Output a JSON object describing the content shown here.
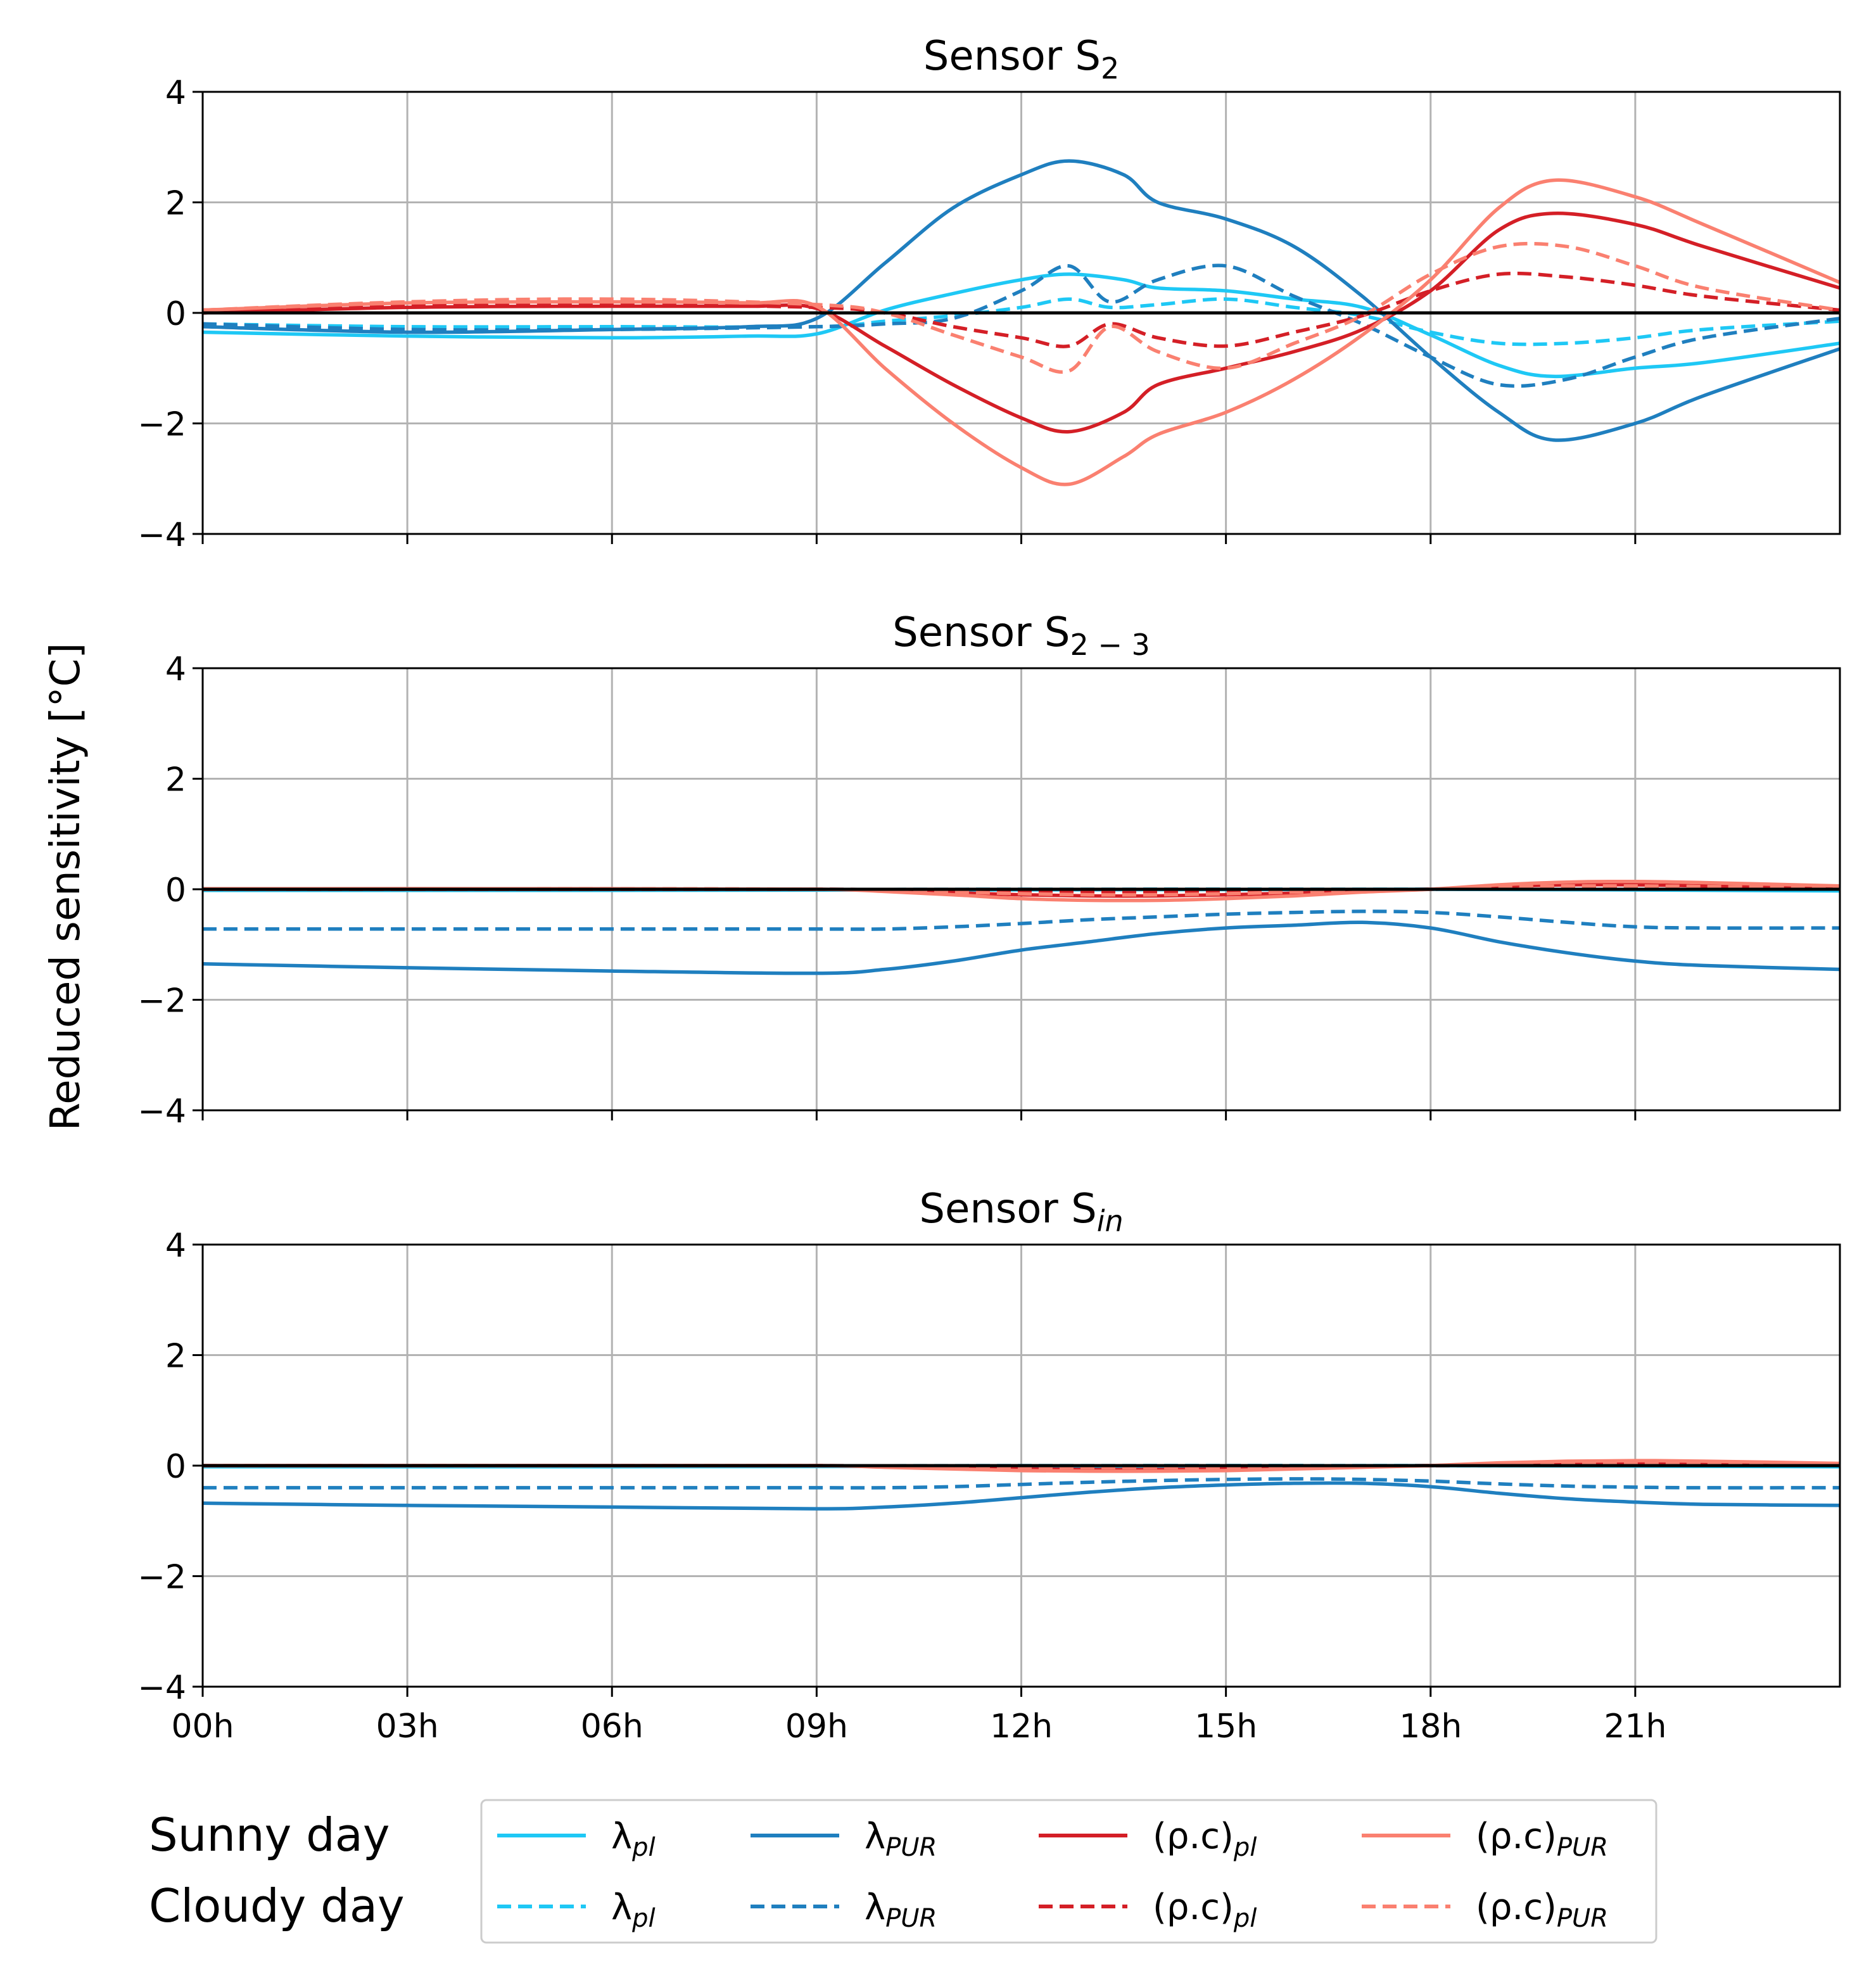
{
  "colors": {
    "lambda_pl": "#1ec8f5",
    "lambda_PUR": "#1f7fbf",
    "rhoc_pl": "#d41f26",
    "rhoc_PUR": "#fa8070",
    "grid": "#b3b3b3",
    "axis": "#000000"
  },
  "y_axis_label": "Reduced sensitivity [°C]",
  "chart_data": [
    {
      "type": "line",
      "title": "Sensor S",
      "title_sub": "2",
      "title_sub_italic": false,
      "xlabel": "",
      "ylabel": "Reduced sensitivity [°C]",
      "xlim": [
        0,
        24
      ],
      "ylim": [
        -4,
        4
      ],
      "yticks": [
        "4",
        "2",
        "0",
        "−2",
        "−4"
      ],
      "grid": true,
      "series": [
        {
          "key": "lambda_pl",
          "day": "sunny",
          "x": [
            0,
            3,
            6,
            8,
            9,
            10,
            11,
            12,
            12.7,
            13.5,
            14,
            15,
            16,
            17,
            18,
            19,
            19.8,
            21,
            22,
            24
          ],
          "y": [
            -0.35,
            -0.42,
            -0.45,
            -0.42,
            -0.38,
            0.05,
            0.35,
            0.6,
            0.7,
            0.6,
            0.45,
            0.4,
            0.25,
            0.1,
            -0.4,
            -0.95,
            -1.15,
            -1.0,
            -0.9,
            -0.55
          ]
        },
        {
          "key": "lambda_pl",
          "day": "cloudy",
          "x": [
            0,
            3,
            6,
            9,
            10,
            11,
            12,
            12.7,
            13.3,
            14,
            15,
            16,
            17,
            18,
            19,
            20,
            21,
            22,
            24
          ],
          "y": [
            -0.2,
            -0.25,
            -0.25,
            -0.25,
            -0.15,
            -0.05,
            0.1,
            0.25,
            0.1,
            0.15,
            0.25,
            0.1,
            -0.05,
            -0.35,
            -0.55,
            -0.55,
            -0.45,
            -0.3,
            -0.15
          ]
        },
        {
          "key": "lambda_PUR",
          "day": "sunny",
          "x": [
            0,
            3,
            6,
            8,
            9,
            10,
            11,
            12,
            12.7,
            13.5,
            14,
            15,
            16,
            17,
            18,
            19,
            19.8,
            21,
            22,
            24
          ],
          "y": [
            -0.25,
            -0.35,
            -0.3,
            -0.25,
            -0.1,
            0.9,
            1.9,
            2.5,
            2.75,
            2.5,
            2.0,
            1.7,
            1.2,
            0.3,
            -0.8,
            -1.8,
            -2.3,
            -2.0,
            -1.5,
            -0.65
          ]
        },
        {
          "key": "lambda_PUR",
          "day": "cloudy",
          "x": [
            0,
            3,
            6,
            9,
            10,
            11,
            12,
            12.7,
            13.3,
            14,
            15,
            16,
            17,
            18,
            19,
            20,
            21,
            22,
            24
          ],
          "y": [
            -0.2,
            -0.3,
            -0.3,
            -0.25,
            -0.2,
            -0.1,
            0.4,
            0.85,
            0.2,
            0.6,
            0.85,
            0.3,
            -0.2,
            -0.8,
            -1.3,
            -1.2,
            -0.8,
            -0.45,
            -0.1
          ]
        },
        {
          "key": "rhoc_pl",
          "day": "sunny",
          "x": [
            0,
            3,
            6,
            8,
            9,
            10,
            11,
            12,
            12.7,
            13.5,
            14,
            15,
            16,
            17,
            18,
            19,
            19.8,
            21,
            22,
            24
          ],
          "y": [
            0,
            0.1,
            0.12,
            0.12,
            0.08,
            -0.6,
            -1.3,
            -1.9,
            -2.15,
            -1.8,
            -1.3,
            -1.0,
            -0.7,
            -0.3,
            0.4,
            1.5,
            1.8,
            1.6,
            1.2,
            0.45
          ]
        },
        {
          "key": "rhoc_pl",
          "day": "cloudy",
          "x": [
            0,
            3,
            6,
            9,
            10,
            11,
            12,
            12.7,
            13.3,
            14,
            15,
            16,
            17,
            18,
            19,
            20,
            21,
            22,
            24
          ],
          "y": [
            0.05,
            0.15,
            0.15,
            0.1,
            0,
            -0.25,
            -0.45,
            -0.6,
            -0.2,
            -0.45,
            -0.6,
            -0.35,
            -0.05,
            0.4,
            0.7,
            0.65,
            0.5,
            0.3,
            0.05
          ]
        },
        {
          "key": "rhoc_PUR",
          "day": "sunny",
          "x": [
            0,
            3,
            6,
            8,
            9,
            10,
            11,
            12,
            12.7,
            13.5,
            14,
            15,
            16,
            17,
            18,
            19,
            19.8,
            21,
            22,
            24
          ],
          "y": [
            0.05,
            0.18,
            0.2,
            0.18,
            0.12,
            -1.0,
            -2.0,
            -2.8,
            -3.1,
            -2.6,
            -2.2,
            -1.8,
            -1.2,
            -0.4,
            0.6,
            1.9,
            2.4,
            2.1,
            1.6,
            0.55
          ]
        },
        {
          "key": "rhoc_PUR",
          "day": "cloudy",
          "x": [
            0,
            3,
            6,
            9,
            10,
            11,
            12,
            12.7,
            13.3,
            14,
            15,
            16,
            17,
            18,
            19,
            20,
            21,
            22,
            24
          ],
          "y": [
            0.05,
            0.2,
            0.25,
            0.15,
            0,
            -0.4,
            -0.8,
            -1.05,
            -0.25,
            -0.7,
            -1.0,
            -0.55,
            -0.05,
            0.7,
            1.2,
            1.2,
            0.85,
            0.45,
            0.05
          ]
        }
      ]
    },
    {
      "type": "line",
      "title": "Sensor S",
      "title_sub": "2 − 3",
      "title_sub_italic": false,
      "xlabel": "",
      "ylabel": "Reduced sensitivity [°C]",
      "xlim": [
        0,
        24
      ],
      "ylim": [
        -4,
        4
      ],
      "yticks": [
        "4",
        "2",
        "0",
        "−2",
        "−4"
      ],
      "grid": true,
      "series": [
        {
          "key": "lambda_pl",
          "day": "sunny",
          "x": [
            0,
            6,
            12,
            18,
            24
          ],
          "y": [
            -0.02,
            -0.02,
            -0.01,
            0,
            -0.03
          ]
        },
        {
          "key": "lambda_pl",
          "day": "cloudy",
          "x": [
            0,
            6,
            12,
            18,
            24
          ],
          "y": [
            -0.01,
            -0.01,
            0,
            0,
            -0.01
          ]
        },
        {
          "key": "lambda_PUR",
          "day": "sunny",
          "x": [
            0,
            3,
            6,
            9,
            10,
            11,
            12,
            13,
            14,
            15,
            16,
            17,
            18,
            19,
            20,
            21,
            22,
            24
          ],
          "y": [
            -1.35,
            -1.42,
            -1.48,
            -1.52,
            -1.45,
            -1.3,
            -1.1,
            -0.95,
            -0.8,
            -0.7,
            -0.65,
            -0.6,
            -0.7,
            -0.95,
            -1.15,
            -1.3,
            -1.38,
            -1.45
          ]
        },
        {
          "key": "lambda_PUR",
          "day": "cloudy",
          "x": [
            0,
            3,
            6,
            9,
            10,
            11,
            12,
            13,
            14,
            15,
            16,
            17,
            18,
            19,
            20,
            21,
            22,
            24
          ],
          "y": [
            -0.72,
            -0.72,
            -0.72,
            -0.72,
            -0.72,
            -0.68,
            -0.62,
            -0.55,
            -0.5,
            -0.45,
            -0.42,
            -0.4,
            -0.42,
            -0.5,
            -0.6,
            -0.68,
            -0.7,
            -0.7
          ]
        },
        {
          "key": "rhoc_pl",
          "day": "sunny",
          "x": [
            0,
            6,
            9,
            10,
            11,
            12,
            13,
            14,
            15,
            16,
            17,
            18,
            19,
            20,
            21,
            22,
            24
          ],
          "y": [
            0,
            0,
            0,
            -0.02,
            -0.06,
            -0.1,
            -0.12,
            -0.12,
            -0.1,
            -0.07,
            -0.03,
            0,
            0.05,
            0.08,
            0.08,
            0.06,
            0.03
          ]
        },
        {
          "key": "rhoc_pl",
          "day": "cloudy",
          "x": [
            0,
            6,
            9,
            10,
            11,
            12,
            13,
            14,
            15,
            16,
            17,
            18,
            19,
            20,
            21,
            22,
            24
          ],
          "y": [
            0,
            0,
            0,
            -0.01,
            -0.03,
            -0.05,
            -0.06,
            -0.06,
            -0.05,
            -0.03,
            -0.01,
            0,
            0.03,
            0.04,
            0.04,
            0.03,
            0.02
          ]
        },
        {
          "key": "rhoc_PUR",
          "day": "sunny",
          "x": [
            0,
            6,
            9,
            10,
            11,
            12,
            13,
            14,
            15,
            16,
            17,
            18,
            19,
            20,
            21,
            22,
            24
          ],
          "y": [
            0.01,
            0.01,
            0,
            -0.04,
            -0.1,
            -0.17,
            -0.2,
            -0.2,
            -0.17,
            -0.12,
            -0.05,
            0,
            0.08,
            0.13,
            0.14,
            0.12,
            0.06
          ]
        },
        {
          "key": "rhoc_PUR",
          "day": "cloudy",
          "x": [
            0,
            6,
            9,
            10,
            11,
            12,
            13,
            14,
            15,
            16,
            17,
            18,
            19,
            20,
            21,
            22,
            24
          ],
          "y": [
            0,
            0.01,
            0,
            -0.02,
            -0.05,
            -0.08,
            -0.1,
            -0.1,
            -0.08,
            -0.05,
            -0.02,
            0,
            0.04,
            0.06,
            0.06,
            0.05,
            0.03
          ]
        }
      ]
    },
    {
      "type": "line",
      "title": "Sensor S",
      "title_sub": "in",
      "title_sub_italic": true,
      "xlabel": "",
      "ylabel": "Reduced sensitivity [°C]",
      "xlim": [
        0,
        24
      ],
      "ylim": [
        -4,
        4
      ],
      "yticks": [
        "4",
        "2",
        "0",
        "−2",
        "−4"
      ],
      "xticks": [
        "00h",
        "03h",
        "06h",
        "09h",
        "12h",
        "15h",
        "18h",
        "21h"
      ],
      "grid": true,
      "series": [
        {
          "key": "lambda_pl",
          "day": "sunny",
          "x": [
            0,
            6,
            12,
            18,
            24
          ],
          "y": [
            -0.02,
            -0.02,
            -0.01,
            0,
            -0.02
          ]
        },
        {
          "key": "lambda_pl",
          "day": "cloudy",
          "x": [
            0,
            6,
            12,
            18,
            24
          ],
          "y": [
            -0.01,
            -0.01,
            0,
            0,
            -0.01
          ]
        },
        {
          "key": "lambda_PUR",
          "day": "sunny",
          "x": [
            0,
            3,
            6,
            9,
            10,
            11,
            12,
            13,
            14,
            15,
            16,
            17,
            18,
            19,
            20,
            21,
            22,
            24
          ],
          "y": [
            -0.68,
            -0.72,
            -0.75,
            -0.78,
            -0.75,
            -0.68,
            -0.58,
            -0.48,
            -0.4,
            -0.35,
            -0.32,
            -0.32,
            -0.38,
            -0.5,
            -0.6,
            -0.66,
            -0.7,
            -0.72
          ]
        },
        {
          "key": "lambda_PUR",
          "day": "cloudy",
          "x": [
            0,
            3,
            6,
            9,
            10,
            11,
            12,
            13,
            14,
            15,
            16,
            17,
            18,
            19,
            20,
            21,
            22,
            24
          ],
          "y": [
            -0.4,
            -0.4,
            -0.4,
            -0.4,
            -0.4,
            -0.38,
            -0.34,
            -0.3,
            -0.27,
            -0.25,
            -0.24,
            -0.25,
            -0.28,
            -0.33,
            -0.37,
            -0.39,
            -0.4,
            -0.4
          ]
        },
        {
          "key": "rhoc_pl",
          "day": "sunny",
          "x": [
            0,
            6,
            9,
            10,
            11,
            12,
            13,
            14,
            15,
            16,
            17,
            18,
            19,
            20,
            21,
            22,
            24
          ],
          "y": [
            0,
            0,
            0,
            -0.02,
            -0.04,
            -0.06,
            -0.07,
            -0.07,
            -0.06,
            -0.04,
            -0.02,
            0,
            0.03,
            0.05,
            0.05,
            0.04,
            0.02
          ]
        },
        {
          "key": "rhoc_pl",
          "day": "cloudy",
          "x": [
            0,
            6,
            9,
            12,
            15,
            18,
            21,
            24
          ],
          "y": [
            0,
            0,
            0,
            -0.02,
            -0.02,
            0,
            0.02,
            0.01
          ]
        },
        {
          "key": "rhoc_PUR",
          "day": "sunny",
          "x": [
            0,
            6,
            9,
            10,
            11,
            12,
            13,
            14,
            15,
            16,
            17,
            18,
            19,
            20,
            21,
            22,
            24
          ],
          "y": [
            0,
            0,
            0,
            -0.03,
            -0.06,
            -0.09,
            -0.1,
            -0.1,
            -0.09,
            -0.06,
            -0.03,
            0,
            0.05,
            0.08,
            0.09,
            0.08,
            0.04
          ]
        },
        {
          "key": "rhoc_PUR",
          "day": "cloudy",
          "x": [
            0,
            6,
            9,
            12,
            15,
            18,
            21,
            24
          ],
          "y": [
            0,
            0,
            0,
            -0.03,
            -0.03,
            0,
            0.03,
            0.02
          ]
        }
      ]
    }
  ],
  "legend": {
    "row_labels": [
      "Sunny day",
      "Cloudy day"
    ],
    "entries": [
      {
        "key": "lambda_pl",
        "base": "λ",
        "sub": "pl"
      },
      {
        "key": "lambda_PUR",
        "base": "λ",
        "sub": "PUR"
      },
      {
        "key": "rhoc_pl",
        "base": "(ρ.c)",
        "sub": "pl"
      },
      {
        "key": "rhoc_PUR",
        "base": "(ρ.c)",
        "sub": "PUR"
      }
    ]
  }
}
